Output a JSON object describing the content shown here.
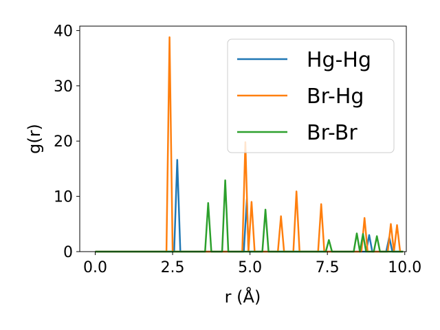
{
  "chart_data": {
    "type": "line",
    "title": "",
    "xlabel": "r (Å)",
    "ylabel": "g(r)",
    "xlim": [
      -0.5,
      10.05
    ],
    "ylim": [
      0,
      40.8
    ],
    "xticks": [
      0.0,
      2.5,
      5.0,
      7.5,
      10.0
    ],
    "xtick_labels": [
      "0.0",
      "2.5",
      "5.0",
      "7.5",
      "10.0"
    ],
    "yticks": [
      0,
      10,
      20,
      30,
      40
    ],
    "ytick_labels": [
      "0",
      "10",
      "20",
      "30",
      "40"
    ],
    "grid": false,
    "legend_position": "top-right",
    "series": [
      {
        "name": "Hg-Hg",
        "color": "#1f77b4",
        "x": [
          0.0,
          2.55,
          2.65,
          2.75,
          4.8,
          4.9,
          4.95,
          5.05,
          8.75,
          8.85,
          8.95,
          9.4,
          9.5,
          9.6,
          9.9
        ],
        "y": [
          0,
          0,
          16.6,
          0,
          0,
          9.5,
          0,
          0,
          0,
          3.0,
          0,
          0,
          2.6,
          0,
          0
        ]
      },
      {
        "name": "Br-Hg",
        "color": "#ff7f0e",
        "x": [
          0.0,
          2.3,
          2.4,
          2.5,
          4.75,
          4.85,
          4.95,
          5.05,
          5.15,
          5.9,
          6.0,
          6.1,
          6.4,
          6.5,
          6.6,
          7.2,
          7.3,
          7.4,
          8.6,
          8.7,
          8.8,
          9.45,
          9.55,
          9.65,
          9.75,
          9.85,
          9.95
        ],
        "y": [
          0,
          0,
          38.8,
          0,
          0,
          19.8,
          0,
          9.0,
          0,
          0,
          6.4,
          0,
          0,
          10.9,
          0,
          0,
          8.6,
          0,
          0,
          6.1,
          0,
          0,
          5.0,
          0,
          4.8,
          0,
          0
        ]
      },
      {
        "name": "Br-Br",
        "color": "#2ca02c",
        "x": [
          0.0,
          3.55,
          3.65,
          3.75,
          4.1,
          4.2,
          4.3,
          5.4,
          5.5,
          5.6,
          7.45,
          7.55,
          7.65,
          8.35,
          8.45,
          8.55,
          8.65,
          8.75,
          9.0,
          9.1,
          9.2,
          9.95
        ],
        "y": [
          0,
          0,
          8.8,
          0,
          0,
          12.9,
          0,
          0,
          7.6,
          0,
          0,
          2.1,
          0,
          0,
          3.3,
          0,
          3.2,
          0,
          0,
          2.8,
          0,
          0
        ]
      }
    ]
  }
}
